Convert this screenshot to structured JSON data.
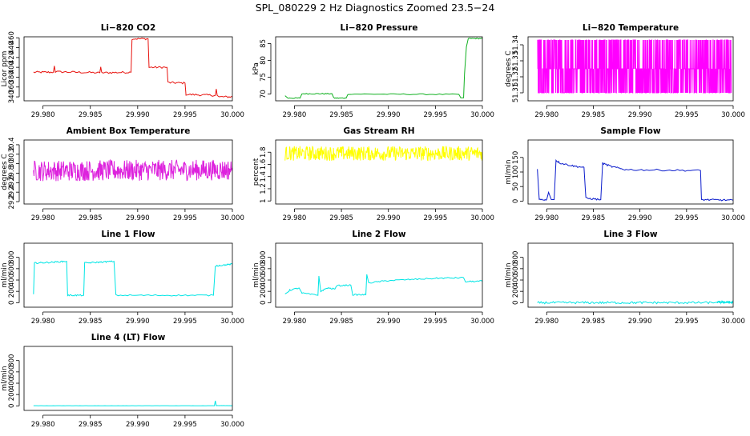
{
  "page": {
    "title": "SPL_080229  2 Hz Diagnostics Zoomed 23.5−24"
  },
  "chart_data": [
    {
      "type": "line",
      "title": "Li−820 CO2",
      "ylabel": "Licor ppm",
      "color": "#e8140f",
      "xlim": [
        29.978,
        30.0
      ],
      "ylim": [
        332,
        462
      ],
      "xticks": [
        "29.980",
        "29.985",
        "29.990",
        "29.995",
        "30.000"
      ],
      "yticks": [
        340,
        360,
        380,
        400,
        420,
        440,
        460
      ],
      "noise": 2,
      "series": [
        {
          "x": 29.979,
          "y": 390
        },
        {
          "x": 29.9811,
          "y": 390
        },
        {
          "x": 29.9812,
          "y": 403
        },
        {
          "x": 29.9813,
          "y": 391
        },
        {
          "x": 29.986,
          "y": 389
        },
        {
          "x": 29.9861,
          "y": 401
        },
        {
          "x": 29.9862,
          "y": 389
        },
        {
          "x": 29.9893,
          "y": 390
        },
        {
          "x": 29.9894,
          "y": 458
        },
        {
          "x": 29.9911,
          "y": 458
        },
        {
          "x": 29.9912,
          "y": 400
        },
        {
          "x": 29.9931,
          "y": 400
        },
        {
          "x": 29.9932,
          "y": 369
        },
        {
          "x": 29.995,
          "y": 368
        },
        {
          "x": 29.9951,
          "y": 345
        },
        {
          "x": 29.9982,
          "y": 343
        },
        {
          "x": 29.9983,
          "y": 356
        },
        {
          "x": 29.9984,
          "y": 343
        },
        {
          "x": 29.9986,
          "y": 340
        },
        {
          "x": 30.0,
          "y": 340
        }
      ]
    },
    {
      "type": "line",
      "title": "Li−820 Pressure",
      "ylabel": "kPa",
      "color": "#10b020",
      "xlim": [
        29.978,
        30.0
      ],
      "ylim": [
        68,
        87
      ],
      "xticks": [
        "29.980",
        "29.985",
        "29.990",
        "29.995",
        "30.000"
      ],
      "yticks": [
        70,
        75,
        80,
        85
      ],
      "noise": 0.15,
      "series": [
        {
          "x": 29.979,
          "y": 69.5
        },
        {
          "x": 29.9793,
          "y": 68.8
        },
        {
          "x": 29.9806,
          "y": 68.8
        },
        {
          "x": 29.9808,
          "y": 70.1
        },
        {
          "x": 29.984,
          "y": 70.1
        },
        {
          "x": 29.9842,
          "y": 68.8
        },
        {
          "x": 29.9855,
          "y": 68.8
        },
        {
          "x": 29.9857,
          "y": 70.0
        },
        {
          "x": 29.9975,
          "y": 69.9
        },
        {
          "x": 29.9977,
          "y": 68.9
        },
        {
          "x": 29.998,
          "y": 68.9
        },
        {
          "x": 29.9981,
          "y": 76.0
        },
        {
          "x": 29.9983,
          "y": 84.0
        },
        {
          "x": 29.9985,
          "y": 86.5
        },
        {
          "x": 30.0,
          "y": 86.5
        }
      ]
    },
    {
      "type": "line",
      "title": "Li−820 Temperature",
      "ylabel": "degrees C",
      "color": "#ff00ff",
      "xlim": [
        29.978,
        30.0
      ],
      "ylim": [
        51.305,
        51.345
      ],
      "xticks": [
        "29.980",
        "29.985",
        "29.990",
        "29.995",
        "30.000"
      ],
      "yticks": [
        51.31,
        51.32,
        51.33,
        51.34
      ],
      "levels": [
        51.31,
        51.325,
        51.343
      ],
      "series": [
        {
          "x": 29.979,
          "y": 51.343
        },
        {
          "x": 29.9998,
          "y": 51.343
        }
      ]
    },
    {
      "type": "line",
      "title": "Ambient Box Temperature",
      "ylabel": "degrees C",
      "color": "#dd22dd",
      "xlim": [
        29.978,
        30.0
      ],
      "ylim": [
        29.15,
        30.5
      ],
      "xticks": [
        "29.980",
        "29.985",
        "29.990",
        "29.995",
        "30.000"
      ],
      "yticks": [
        29.2,
        29.4,
        29.6,
        29.8,
        30.0,
        30.2,
        30.4
      ],
      "noise": 0.22,
      "series": [
        {
          "x": 29.979,
          "y": 29.85
        },
        {
          "x": 30.0,
          "y": 29.87
        }
      ]
    },
    {
      "type": "line",
      "title": "Gas Stream RH",
      "ylabel": "percent",
      "color": "#ffff00",
      "xlim": [
        29.978,
        30.0
      ],
      "ylim": [
        0.95,
        2.0
      ],
      "xticks": [
        "29.980",
        "29.985",
        "29.990",
        "29.995",
        "30.000"
      ],
      "yticks": [
        1.0,
        1.2,
        1.4,
        1.6,
        1.8
      ],
      "noise": 0.12,
      "series": [
        {
          "x": 29.979,
          "y": 1.78
        },
        {
          "x": 30.0,
          "y": 1.78
        }
      ]
    },
    {
      "type": "line",
      "title": "Sample Flow",
      "ylabel": "ml/min",
      "color": "#0a1bcc",
      "xlim": [
        29.978,
        30.0
      ],
      "ylim": [
        -10,
        210
      ],
      "xticks": [
        "29.980",
        "29.985",
        "29.990",
        "29.995",
        "30.000"
      ],
      "yticks": [
        0,
        50,
        100,
        150
      ],
      "noise": 3,
      "series": [
        {
          "x": 29.979,
          "y": 110
        },
        {
          "x": 29.9792,
          "y": 5
        },
        {
          "x": 29.98,
          "y": 5
        },
        {
          "x": 29.9802,
          "y": 30
        },
        {
          "x": 29.9805,
          "y": 5
        },
        {
          "x": 29.9808,
          "y": 5
        },
        {
          "x": 29.981,
          "y": 140
        },
        {
          "x": 29.9815,
          "y": 130
        },
        {
          "x": 29.983,
          "y": 120
        },
        {
          "x": 29.984,
          "y": 116
        },
        {
          "x": 29.9842,
          "y": 10
        },
        {
          "x": 29.9858,
          "y": 5
        },
        {
          "x": 29.986,
          "y": 130
        },
        {
          "x": 29.987,
          "y": 118
        },
        {
          "x": 29.9885,
          "y": 108
        },
        {
          "x": 29.9965,
          "y": 105
        },
        {
          "x": 29.9966,
          "y": 5
        },
        {
          "x": 30.0,
          "y": 3
        }
      ]
    },
    {
      "type": "line",
      "title": "Line 1 Flow",
      "ylabel": "ml/min",
      "color": "#00e5e5",
      "xlim": [
        29.978,
        30.0
      ],
      "ylim": [
        -80,
        1050
      ],
      "xticks": [
        "29.980",
        "29.985",
        "29.990",
        "29.995",
        "30.000"
      ],
      "yticks": [
        0,
        200,
        400,
        600,
        800
      ],
      "noise": 12,
      "series": [
        {
          "x": 29.979,
          "y": 150
        },
        {
          "x": 29.9791,
          "y": 700
        },
        {
          "x": 29.9805,
          "y": 710
        },
        {
          "x": 29.9825,
          "y": 730
        },
        {
          "x": 29.9826,
          "y": 130
        },
        {
          "x": 29.9843,
          "y": 130
        },
        {
          "x": 29.9844,
          "y": 700
        },
        {
          "x": 29.9875,
          "y": 730
        },
        {
          "x": 29.9877,
          "y": 130
        },
        {
          "x": 29.998,
          "y": 130
        },
        {
          "x": 29.9982,
          "y": 650
        },
        {
          "x": 30.0,
          "y": 680
        }
      ]
    },
    {
      "type": "line",
      "title": "Line 2 Flow",
      "ylabel": "ml/min",
      "color": "#00e5e5",
      "xlim": [
        29.978,
        30.0
      ],
      "ylim": [
        -80,
        1050
      ],
      "xticks": [
        "29.980",
        "29.985",
        "29.990",
        "29.995",
        "30.000"
      ],
      "yticks": [
        0,
        200,
        400,
        600,
        800
      ],
      "noise": 12,
      "series": [
        {
          "x": 29.979,
          "y": 150
        },
        {
          "x": 29.9795,
          "y": 220
        },
        {
          "x": 29.9805,
          "y": 260
        },
        {
          "x": 29.9808,
          "y": 170
        },
        {
          "x": 29.9825,
          "y": 130
        },
        {
          "x": 29.9826,
          "y": 470
        },
        {
          "x": 29.9828,
          "y": 200
        },
        {
          "x": 29.9835,
          "y": 260
        },
        {
          "x": 29.9843,
          "y": 240
        },
        {
          "x": 29.9845,
          "y": 300
        },
        {
          "x": 29.986,
          "y": 310
        },
        {
          "x": 29.9862,
          "y": 140
        },
        {
          "x": 29.9876,
          "y": 140
        },
        {
          "x": 29.9877,
          "y": 500
        },
        {
          "x": 29.9879,
          "y": 350
        },
        {
          "x": 29.99,
          "y": 390
        },
        {
          "x": 29.995,
          "y": 430
        },
        {
          "x": 29.998,
          "y": 440
        },
        {
          "x": 29.9982,
          "y": 370
        },
        {
          "x": 30.0,
          "y": 380
        }
      ]
    },
    {
      "type": "line",
      "title": "Line 3 Flow",
      "ylabel": "ml/min",
      "color": "#00e5e5",
      "xlim": [
        29.978,
        30.0
      ],
      "ylim": [
        -80,
        1050
      ],
      "xticks": [
        "29.980",
        "29.985",
        "29.990",
        "29.995",
        "30.000"
      ],
      "yticks": [
        0,
        200,
        400,
        600,
        800
      ],
      "noise": 20,
      "series": [
        {
          "x": 29.979,
          "y": 0
        },
        {
          "x": 29.998,
          "y": 0
        },
        {
          "x": 29.9983,
          "y": 10
        },
        {
          "x": 30.0,
          "y": 5
        }
      ]
    },
    {
      "type": "line",
      "title": "Line 4 (LT) Flow",
      "ylabel": "ml/min",
      "color": "#00e5e5",
      "xlim": [
        29.978,
        30.0
      ],
      "ylim": [
        -80,
        1050
      ],
      "xticks": [
        "29.980",
        "29.985",
        "29.990",
        "29.995",
        "30.000"
      ],
      "yticks": [
        0,
        200,
        400,
        600,
        800
      ],
      "noise": 1.5,
      "series": [
        {
          "x": 29.979,
          "y": 2
        },
        {
          "x": 29.9981,
          "y": 2
        },
        {
          "x": 29.9982,
          "y": 90
        },
        {
          "x": 29.9983,
          "y": 5
        },
        {
          "x": 30.0,
          "y": 3
        }
      ]
    }
  ]
}
